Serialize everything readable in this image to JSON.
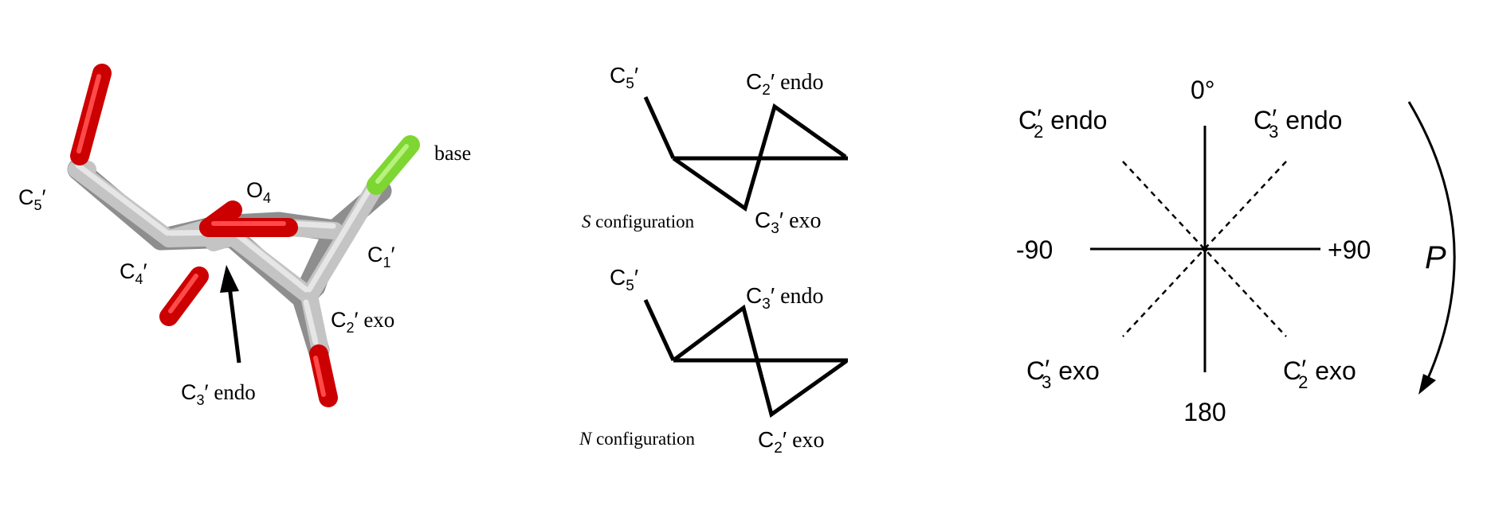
{
  "colors": {
    "carbon": "#c2c2c2",
    "oxygen": "#cc0000",
    "base": "#7ed633",
    "ink": "#000000",
    "background": "#ffffff"
  },
  "molecule": {
    "c5": {
      "main": "C",
      "sub": "5",
      "prime": "′"
    },
    "o4": {
      "main": "O",
      "sub": "4"
    },
    "base": "base",
    "c1": {
      "main": "C",
      "sub": "1",
      "prime": "′"
    },
    "c4": {
      "main": "C",
      "sub": "4",
      "prime": "′"
    },
    "c2exo": {
      "main": "C",
      "sub": "2",
      "prime": "′",
      "tail": " exo"
    },
    "c3endo": {
      "main": "C",
      "sub": "3",
      "prime": "′",
      "tail": " endo"
    }
  },
  "configs": {
    "s": {
      "c5": {
        "main": "C",
        "sub": "5",
        "prime": "′"
      },
      "top": {
        "main": "C",
        "sub": "2",
        "prime": "′",
        "tail": " endo"
      },
      "bottom": {
        "main": "C",
        "sub": "3",
        "prime": "′",
        "tail": " exo"
      },
      "letter": "S",
      "word": " configuration"
    },
    "n": {
      "c5": {
        "main": "C",
        "sub": "5",
        "prime": "′"
      },
      "top": {
        "main": "C",
        "sub": "3",
        "prime": "′",
        "tail": " endo"
      },
      "bottom": {
        "main": "C",
        "sub": "2",
        "prime": "′",
        "tail": " exo"
      },
      "letter": "N",
      "word": " configuration"
    }
  },
  "wheel": {
    "top": "0°",
    "bottom": "180",
    "left": "-90",
    "right": "+90",
    "phase_label": "P",
    "upper_left": {
      "main": "C",
      "prime": "′",
      "sub": "2",
      "tail": " endo"
    },
    "upper_right": {
      "main": "C",
      "prime": "′",
      "sub": "3",
      "tail": " endo"
    },
    "lower_left": {
      "main": "C",
      "prime": "′",
      "sub": "3",
      "tail": " exo"
    },
    "lower_right": {
      "main": "C",
      "prime": "′",
      "sub": "2",
      "tail": " exo"
    }
  }
}
